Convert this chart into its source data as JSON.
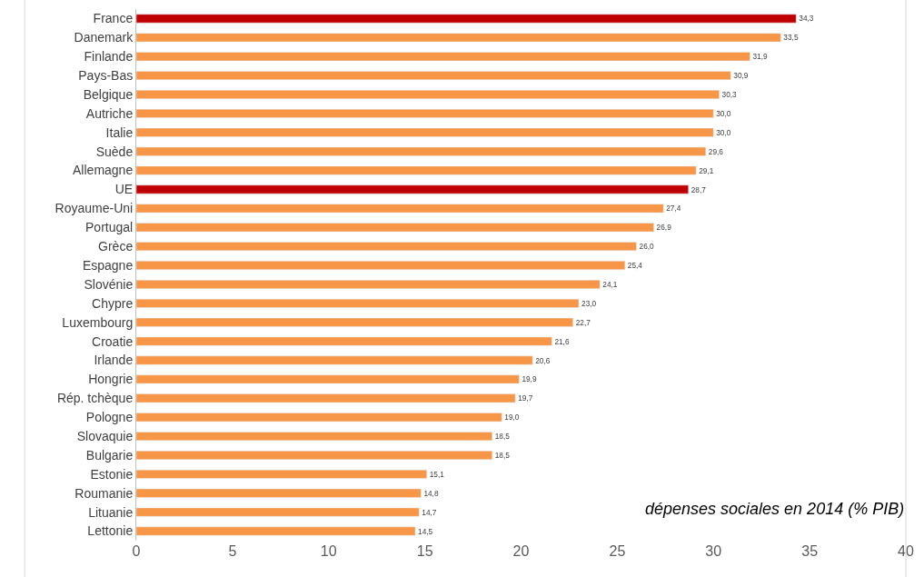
{
  "chart_data": {
    "type": "bar",
    "orientation": "horizontal",
    "categories": [
      "France",
      "Danemark",
      "Finlande",
      "Pays-Bas",
      "Belgique",
      "Autriche",
      "Italie",
      "Suède",
      "Allemagne",
      "UE",
      "Royaume-Uni",
      "Portugal",
      "Grèce",
      "Espagne",
      "Slovénie",
      "Chypre",
      "Luxembourg",
      "Croatie",
      "Irlande",
      "Hongrie",
      "Rép. tchèque",
      "Pologne",
      "Slovaquie",
      "Bulgarie",
      "Estonie",
      "Roumanie",
      "Lituanie",
      "Lettonie"
    ],
    "values": [
      34.3,
      33.5,
      31.9,
      30.9,
      30.3,
      30.0,
      30.0,
      29.6,
      29.1,
      28.7,
      27.4,
      26.9,
      26.0,
      25.4,
      24.1,
      23.0,
      22.7,
      21.6,
      20.6,
      19.9,
      19.7,
      19.0,
      18.5,
      18.5,
      15.1,
      14.8,
      14.7,
      14.5
    ],
    "value_labels": [
      "34,3",
      "33,5",
      "31,9",
      "30,9",
      "30,3",
      "30,0",
      "30,0",
      "29,6",
      "29,1",
      "28,7",
      "27,4",
      "26,9",
      "26,0",
      "25,4",
      "24,1",
      "23,0",
      "22,7",
      "21,6",
      "20,6",
      "19,9",
      "19,7",
      "19,0",
      "18,5",
      "18,5",
      "15,1",
      "14,8",
      "14,7",
      "14,5"
    ],
    "colors": [
      "#c00000",
      "#f79646",
      "#f79646",
      "#f79646",
      "#f79646",
      "#f79646",
      "#f79646",
      "#f79646",
      "#f79646",
      "#c00000",
      "#f79646",
      "#f79646",
      "#f79646",
      "#f79646",
      "#f79646",
      "#f79646",
      "#f79646",
      "#f79646",
      "#f79646",
      "#f79646",
      "#f79646",
      "#f79646",
      "#f79646",
      "#f79646",
      "#f79646",
      "#f79646",
      "#f79646",
      "#f79646"
    ],
    "xlim": [
      0,
      40
    ],
    "xticks": [
      0,
      5,
      10,
      15,
      20,
      25,
      30,
      35,
      40
    ],
    "grid": false,
    "legend": false,
    "annotations": [
      "dépenses sociales en 2014 (% PIB)"
    ]
  }
}
